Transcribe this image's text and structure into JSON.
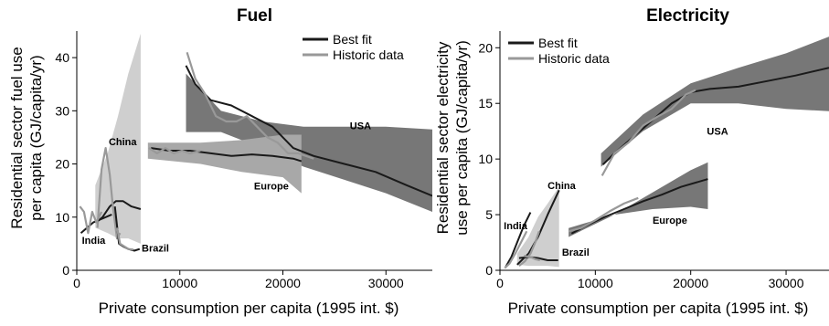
{
  "chart_data": [
    {
      "type": "area",
      "title": "Fuel",
      "xlabel": "Private consumption per capita (1995 int. $)",
      "ylabel": "Residential sector fuel use per capita (GJ/capita/yr)",
      "xlim": [
        0,
        34500
      ],
      "ylim": [
        0,
        45
      ],
      "x_ticks": [
        0,
        10000,
        20000,
        30000
      ],
      "y_ticks": [
        0,
        10,
        20,
        30,
        40
      ],
      "legend": {
        "position": "top-right",
        "entries": [
          {
            "name": "Best fit",
            "color": "#1a1a1a"
          },
          {
            "name": "Historic data",
            "color": "#999999"
          }
        ]
      },
      "bands": [
        {
          "region": "China",
          "color": "#cfcfcf",
          "upper": [
            [
              1800,
              16
            ],
            [
              3000,
              22
            ],
            [
              4000,
              29
            ],
            [
              5000,
              37
            ],
            [
              6200,
              44.5
            ]
          ],
          "lower": [
            [
              1800,
              8
            ],
            [
              3000,
              7
            ],
            [
              4000,
              6
            ],
            [
              5000,
              6
            ],
            [
              6200,
              5
            ]
          ]
        },
        {
          "region": "USA",
          "color": "#777777",
          "upper": [
            [
              10600,
              37
            ],
            [
              14000,
              30
            ],
            [
              18000,
              28
            ],
            [
              22000,
              27
            ],
            [
              26000,
              27
            ],
            [
              30000,
              27
            ],
            [
              34500,
              26.5
            ]
          ],
          "lower": [
            [
              10600,
              26
            ],
            [
              14000,
              26
            ],
            [
              18000,
              23
            ],
            [
              22000,
              19.5
            ],
            [
              26000,
              17
            ],
            [
              30000,
              14.5
            ],
            [
              34500,
              11
            ]
          ]
        },
        {
          "region": "Europe",
          "color": "#a8a8a8",
          "upper": [
            [
              6900,
              24
            ],
            [
              12000,
              24
            ],
            [
              16000,
              24.5
            ],
            [
              20000,
              25.5
            ],
            [
              21800,
              25.5
            ]
          ],
          "lower": [
            [
              6900,
              21
            ],
            [
              12000,
              20
            ],
            [
              16000,
              18.5
            ],
            [
              20000,
              17.5
            ],
            [
              21800,
              14.5
            ]
          ]
        }
      ],
      "series": [
        {
          "region": "China",
          "kind": "best fit",
          "points": [
            [
              1900,
              9
            ],
            [
              2500,
              10
            ],
            [
              3200,
              12
            ],
            [
              3800,
              13
            ],
            [
              4500,
              13
            ],
            [
              5300,
              12
            ],
            [
              6200,
              11.5
            ]
          ]
        },
        {
          "region": "China",
          "kind": "historic",
          "points": [
            [
              2000,
              8
            ],
            [
              2400,
              19
            ],
            [
              2800,
              23
            ],
            [
              3200,
              18
            ],
            [
              3500,
              12
            ],
            [
              3900,
              6
            ],
            [
              4200,
              7
            ]
          ]
        },
        {
          "region": "India",
          "kind": "best fit",
          "points": [
            [
              400,
              7
            ],
            [
              1000,
              8
            ],
            [
              1600,
              9
            ],
            [
              2200,
              9.5
            ],
            [
              2800,
              10
            ],
            [
              3400,
              10.5
            ]
          ]
        },
        {
          "region": "India",
          "kind": "historic",
          "points": [
            [
              300,
              12
            ],
            [
              700,
              11
            ],
            [
              1100,
              7
            ],
            [
              1500,
              11
            ],
            [
              1900,
              9
            ],
            [
              2400,
              11
            ]
          ]
        },
        {
          "region": "Brazil",
          "kind": "best fit",
          "points": [
            [
              3700,
              12
            ],
            [
              4100,
              5
            ],
            [
              4500,
              4.5
            ],
            [
              5000,
              4
            ],
            [
              5600,
              3.7
            ],
            [
              6100,
              4
            ]
          ]
        },
        {
          "region": "Brazil",
          "kind": "historic",
          "points": [
            [
              3900,
              8
            ],
            [
              4200,
              5
            ],
            [
              4600,
              4.5
            ],
            [
              5000,
              4
            ],
            [
              5500,
              3.9
            ]
          ]
        },
        {
          "region": "USA",
          "kind": "best fit",
          "points": [
            [
              10600,
              38.5
            ],
            [
              11500,
              35
            ],
            [
              13000,
              32
            ],
            [
              15000,
              31
            ],
            [
              17000,
              29
            ],
            [
              19000,
              27
            ],
            [
              21000,
              23
            ],
            [
              23000,
              21.5
            ],
            [
              26000,
              20
            ],
            [
              29000,
              18.5
            ],
            [
              32000,
              16
            ],
            [
              34500,
              14
            ]
          ]
        },
        {
          "region": "USA",
          "kind": "historic",
          "points": [
            [
              10700,
              41
            ],
            [
              11500,
              36
            ],
            [
              12500,
              33
            ],
            [
              13500,
              29
            ],
            [
              14500,
              28
            ],
            [
              15500,
              28
            ],
            [
              16500,
              29
            ],
            [
              17500,
              27
            ],
            [
              18500,
              25
            ],
            [
              19500,
              24
            ],
            [
              20500,
              22
            ],
            [
              21500,
              22
            ],
            [
              23000,
              21
            ]
          ]
        },
        {
          "region": "Europe",
          "kind": "best fit",
          "points": [
            [
              7200,
              23
            ],
            [
              9000,
              22.5
            ],
            [
              11000,
              22.5
            ],
            [
              13000,
              22
            ],
            [
              15000,
              21.5
            ],
            [
              17000,
              21.8
            ],
            [
              19000,
              21.5
            ],
            [
              21000,
              21
            ],
            [
              21800,
              20.5
            ]
          ]
        },
        {
          "region": "Europe",
          "kind": "historic",
          "points": [
            [
              7000,
              23
            ],
            [
              7800,
              22
            ],
            [
              8600,
              23
            ],
            [
              9400,
              22
            ],
            [
              10200,
              22.5
            ],
            [
              11000,
              22
            ],
            [
              12000,
              22.5
            ]
          ]
        }
      ],
      "annotations": [
        {
          "text": "China",
          "x": 3100,
          "y": 23.5
        },
        {
          "text": "India",
          "x": 500,
          "y": 5
        },
        {
          "text": "Brazil",
          "x": 6300,
          "y": 3.5
        },
        {
          "text": "USA",
          "x": 26500,
          "y": 26.5
        },
        {
          "text": "Europe",
          "x": 17200,
          "y": 15.2
        }
      ]
    },
    {
      "type": "area",
      "title": "Electricity",
      "xlabel": "Private consumption per capita (1995 int. $)",
      "ylabel": "Residential sector electricity use per capita (GJ/capita/yr)",
      "xlim": [
        0,
        34500
      ],
      "ylim": [
        0,
        21.5
      ],
      "x_ticks": [
        0,
        10000,
        20000,
        30000
      ],
      "y_ticks": [
        0,
        5,
        10,
        15,
        20
      ],
      "legend": {
        "position": "top-left",
        "entries": [
          {
            "name": "Best fit",
            "color": "#1a1a1a"
          },
          {
            "name": "Historic data",
            "color": "#999999"
          }
        ]
      },
      "bands": [
        {
          "region": "USA",
          "color": "#777777",
          "upper": [
            [
              10600,
              10.5
            ],
            [
              15000,
              14
            ],
            [
              20000,
              16.8
            ],
            [
              25000,
              18.2
            ],
            [
              30000,
              19.5
            ],
            [
              34500,
              21
            ]
          ],
          "lower": [
            [
              10600,
              9.3
            ],
            [
              15000,
              12.5
            ],
            [
              20000,
              15
            ],
            [
              25000,
              15
            ],
            [
              30000,
              14.5
            ],
            [
              34500,
              14.3
            ]
          ]
        },
        {
          "region": "Europe",
          "color": "#777777",
          "upper": [
            [
              7200,
              3.8
            ],
            [
              12000,
              5
            ],
            [
              16000,
              7
            ],
            [
              20000,
              9
            ],
            [
              21800,
              9.7
            ]
          ],
          "lower": [
            [
              7200,
              3.0
            ],
            [
              12000,
              5
            ],
            [
              16000,
              5.5
            ],
            [
              20000,
              5.7
            ],
            [
              21800,
              5.5
            ]
          ]
        },
        {
          "region": "China",
          "color": "#cfcfcf",
          "upper": [
            [
              1800,
              1.5
            ],
            [
              3000,
              3
            ],
            [
              4000,
              4.8
            ],
            [
              5000,
              6
            ],
            [
              6200,
              7.5
            ]
          ],
          "lower": [
            [
              1800,
              0.5
            ],
            [
              3000,
              0.4
            ],
            [
              4000,
              0.4
            ],
            [
              5000,
              0.4
            ],
            [
              6200,
              0.3
            ]
          ]
        }
      ],
      "series": [
        {
          "region": "USA",
          "kind": "best fit",
          "points": [
            [
              10800,
              9.5
            ],
            [
              12000,
              10.5
            ],
            [
              14000,
              12
            ],
            [
              16000,
              13.5
            ],
            [
              18000,
              15
            ],
            [
              20000,
              16
            ],
            [
              22000,
              16.3
            ],
            [
              25000,
              16.5
            ],
            [
              28000,
              17
            ],
            [
              31000,
              17.5
            ],
            [
              34500,
              18.2
            ]
          ]
        },
        {
          "region": "USA",
          "kind": "historic",
          "points": [
            [
              10700,
              8.5
            ],
            [
              12000,
              10.5
            ],
            [
              13500,
              11.5
            ],
            [
              15000,
              13
            ],
            [
              16500,
              13.8
            ],
            [
              18000,
              14.5
            ],
            [
              19500,
              15.8
            ],
            [
              20500,
              16.2
            ]
          ]
        },
        {
          "region": "Europe",
          "kind": "best fit",
          "points": [
            [
              7500,
              3.3
            ],
            [
              9000,
              4
            ],
            [
              11000,
              4.8
            ],
            [
              13000,
              5.5
            ],
            [
              15000,
              6.2
            ],
            [
              17000,
              6.8
            ],
            [
              19000,
              7.5
            ],
            [
              21800,
              8.2
            ]
          ]
        },
        {
          "region": "Europe",
          "kind": "historic",
          "points": [
            [
              7200,
              3.5
            ],
            [
              8500,
              3.8
            ],
            [
              10000,
              4.5
            ],
            [
              11500,
              5.3
            ],
            [
              13000,
              6
            ],
            [
              14500,
              6.5
            ]
          ]
        },
        {
          "region": "China",
          "kind": "best fit",
          "points": [
            [
              1800,
              0.5
            ],
            [
              3000,
              1.5
            ],
            [
              4000,
              3
            ],
            [
              5000,
              5
            ],
            [
              6200,
              7.2
            ]
          ]
        },
        {
          "region": "China",
          "kind": "historic",
          "points": [
            [
              2000,
              0.4
            ],
            [
              2600,
              0.8
            ],
            [
              3200,
              1.5
            ],
            [
              3700,
              2.5
            ],
            [
              4100,
              3.5
            ]
          ]
        },
        {
          "region": "India",
          "kind": "best fit",
          "points": [
            [
              600,
              0.3
            ],
            [
              1200,
              1.2
            ],
            [
              1800,
              2.5
            ],
            [
              2500,
              4
            ],
            [
              3200,
              5.2
            ]
          ]
        },
        {
          "region": "India",
          "kind": "historic",
          "points": [
            [
              500,
              0.2
            ],
            [
              1000,
              0.6
            ],
            [
              1600,
              1.5
            ],
            [
              2200,
              2.5
            ],
            [
              2800,
              3.5
            ]
          ]
        },
        {
          "region": "Brazil",
          "kind": "best fit",
          "points": [
            [
              2000,
              1.1
            ],
            [
              3000,
              1.2
            ],
            [
              4000,
              1.1
            ],
            [
              5000,
              0.9
            ],
            [
              6100,
              0.9
            ]
          ]
        },
        {
          "region": "Brazil",
          "kind": "historic",
          "points": [
            [
              2500,
              1.3
            ],
            [
              3200,
              1.2
            ],
            [
              3700,
              1.0
            ],
            [
              4200,
              0.9
            ]
          ]
        }
      ],
      "annotations": [
        {
          "text": "China",
          "x": 5000,
          "y": 7.3
        },
        {
          "text": "India",
          "x": 400,
          "y": 3.7
        },
        {
          "text": "Brazil",
          "x": 6500,
          "y": 1.3
        },
        {
          "text": "USA",
          "x": 21700,
          "y": 12.2
        },
        {
          "text": "Europe",
          "x": 16000,
          "y": 4.2
        }
      ]
    }
  ]
}
